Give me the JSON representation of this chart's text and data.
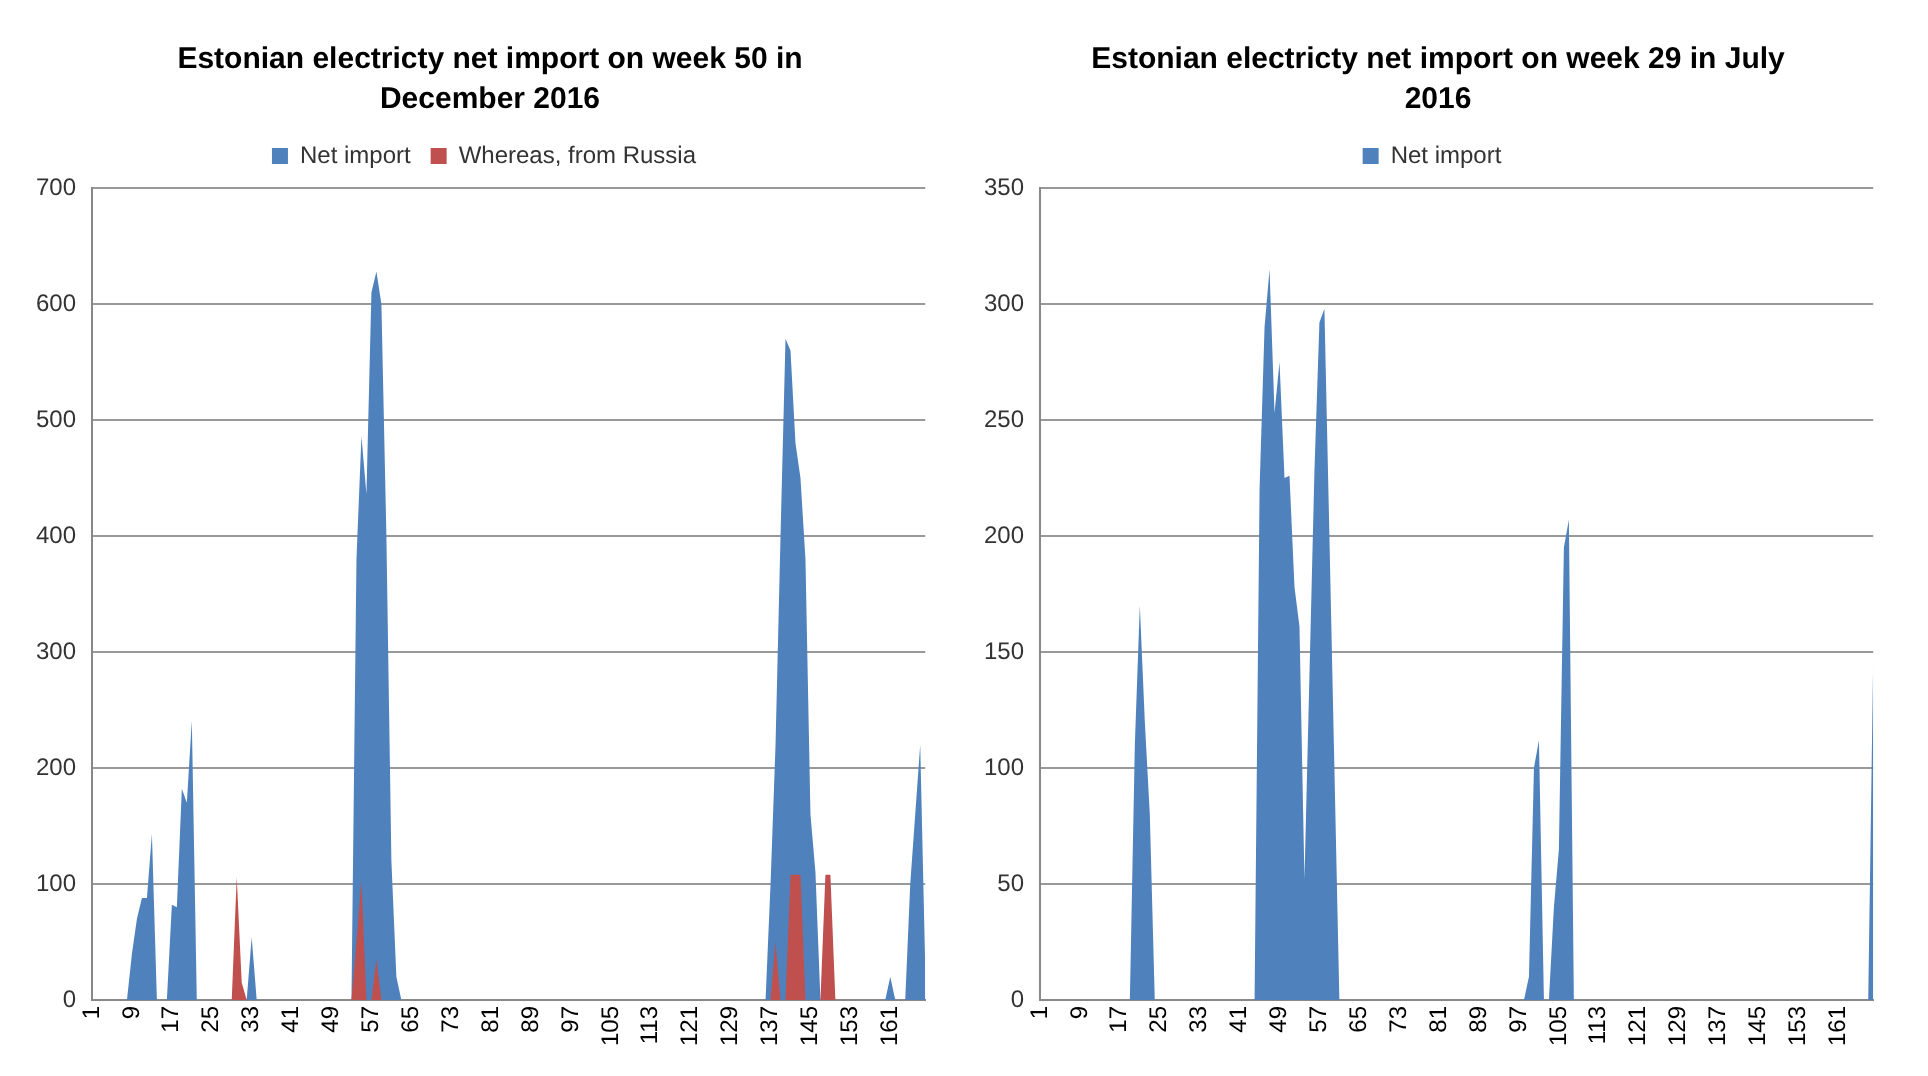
{
  "chart_data": [
    {
      "type": "area",
      "title": "Estonian electricty net import on week 50 in December 2016",
      "categories": [
        "1",
        null,
        null,
        null,
        null,
        null,
        null,
        null,
        "9",
        null,
        null,
        null,
        null,
        null,
        null,
        null,
        "17",
        null,
        null,
        null,
        null,
        null,
        null,
        null,
        "25",
        null,
        null,
        null,
        null,
        null,
        null,
        null,
        "33",
        null,
        null,
        null,
        null,
        null,
        null,
        null,
        "41",
        null,
        null,
        null,
        null,
        null,
        null,
        null,
        "49",
        null,
        null,
        null,
        null,
        null,
        null,
        null,
        "57",
        null,
        null,
        null,
        null,
        null,
        null,
        null,
        "65",
        null,
        null,
        null,
        null,
        null,
        null,
        null,
        "73",
        null,
        null,
        null,
        null,
        null,
        null,
        null,
        "81",
        null,
        null,
        null,
        null,
        null,
        null,
        null,
        "89",
        null,
        null,
        null,
        null,
        null,
        null,
        null,
        "97",
        null,
        null,
        null,
        null,
        null,
        null,
        null,
        "105",
        null,
        null,
        null,
        null,
        null,
        null,
        null,
        "113",
        null,
        null,
        null,
        null,
        null,
        null,
        null,
        "121",
        null,
        null,
        null,
        null,
        null,
        null,
        null,
        "129",
        null,
        null,
        null,
        null,
        null,
        null,
        null,
        "137",
        null,
        null,
        null,
        null,
        null,
        null,
        null,
        "145",
        null,
        null,
        null,
        null,
        null,
        null,
        null,
        "153",
        null,
        null,
        null,
        null,
        null,
        null,
        null,
        "161",
        null,
        null,
        null,
        null,
        null,
        null,
        null
      ],
      "series": [
        {
          "name": "Net import",
          "color": "#4f81bd",
          "values": [
            0,
            0,
            0,
            0,
            0,
            0,
            0,
            0,
            40,
            70,
            88,
            88,
            143,
            0,
            0,
            0,
            82,
            80,
            182,
            170,
            241,
            0,
            0,
            0,
            0,
            0,
            0,
            0,
            0,
            0,
            0,
            0,
            54,
            0,
            0,
            0,
            0,
            0,
            0,
            0,
            0,
            0,
            0,
            0,
            0,
            0,
            0,
            0,
            0,
            0,
            0,
            0,
            0,
            380,
            486,
            436,
            610,
            628,
            600,
            400,
            120,
            20,
            0,
            0,
            0,
            0,
            0,
            0,
            0,
            0,
            0,
            0,
            0,
            0,
            0,
            0,
            0,
            0,
            0,
            0,
            0,
            0,
            0,
            0,
            0,
            0,
            0,
            0,
            0,
            0,
            0,
            0,
            0,
            0,
            0,
            0,
            0,
            0,
            0,
            0,
            0,
            0,
            0,
            0,
            0,
            0,
            0,
            0,
            0,
            0,
            0,
            0,
            0,
            0,
            0,
            0,
            0,
            0,
            0,
            0,
            0,
            0,
            0,
            0,
            0,
            0,
            0,
            0,
            0,
            0,
            0,
            0,
            0,
            0,
            0,
            0,
            100,
            220,
            400,
            570,
            560,
            480,
            450,
            380,
            160,
            110,
            0,
            0,
            0,
            0,
            0,
            0,
            0,
            0,
            0,
            0,
            0,
            0,
            0,
            0,
            20,
            0,
            0,
            0,
            100,
            160,
            220,
            30
          ]
        },
        {
          "name": "Whereas, from Russia",
          "color": "#c0504d",
          "values": [
            0,
            0,
            0,
            0,
            0,
            0,
            0,
            0,
            0,
            0,
            0,
            0,
            0,
            0,
            0,
            0,
            0,
            0,
            0,
            0,
            0,
            0,
            0,
            0,
            0,
            0,
            0,
            0,
            0,
            106,
            15,
            0,
            0,
            0,
            0,
            0,
            0,
            0,
            0,
            0,
            0,
            0,
            0,
            0,
            0,
            0,
            0,
            0,
            0,
            0,
            0,
            0,
            0,
            50,
            103,
            0,
            0,
            35,
            0,
            0,
            0,
            0,
            0,
            0,
            0,
            0,
            0,
            0,
            0,
            0,
            0,
            0,
            0,
            0,
            0,
            0,
            0,
            0,
            0,
            0,
            0,
            0,
            0,
            0,
            0,
            0,
            0,
            0,
            0,
            0,
            0,
            0,
            0,
            0,
            0,
            0,
            0,
            0,
            0,
            0,
            0,
            0,
            0,
            0,
            0,
            0,
            0,
            0,
            0,
            0,
            0,
            0,
            0,
            0,
            0,
            0,
            0,
            0,
            0,
            0,
            0,
            0,
            0,
            0,
            0,
            0,
            0,
            0,
            0,
            0,
            0,
            0,
            0,
            0,
            0,
            0,
            0,
            50,
            0,
            0,
            108,
            108,
            108,
            0,
            0,
            0,
            0,
            108,
            108,
            0,
            0,
            0,
            0,
            0,
            0,
            0,
            0,
            0,
            0,
            0,
            0,
            0,
            0,
            0,
            0,
            0,
            0,
            0
          ]
        }
      ],
      "ylim": [
        0,
        700
      ],
      "yticks": [
        0,
        100,
        200,
        300,
        400,
        500,
        600,
        700
      ],
      "grid": "y",
      "legend": "top"
    },
    {
      "type": "area",
      "title": "Estonian electricty net import on week 29 in July 2016",
      "categories": [
        "1",
        null,
        null,
        null,
        null,
        null,
        null,
        null,
        "9",
        null,
        null,
        null,
        null,
        null,
        null,
        null,
        "17",
        null,
        null,
        null,
        null,
        null,
        null,
        null,
        "25",
        null,
        null,
        null,
        null,
        null,
        null,
        null,
        "33",
        null,
        null,
        null,
        null,
        null,
        null,
        null,
        "41",
        null,
        null,
        null,
        null,
        null,
        null,
        null,
        "49",
        null,
        null,
        null,
        null,
        null,
        null,
        null,
        "57",
        null,
        null,
        null,
        null,
        null,
        null,
        null,
        "65",
        null,
        null,
        null,
        null,
        null,
        null,
        null,
        "73",
        null,
        null,
        null,
        null,
        null,
        null,
        null,
        "81",
        null,
        null,
        null,
        null,
        null,
        null,
        null,
        "89",
        null,
        null,
        null,
        null,
        null,
        null,
        null,
        "97",
        null,
        null,
        null,
        null,
        null,
        null,
        null,
        "105",
        null,
        null,
        null,
        null,
        null,
        null,
        null,
        "113",
        null,
        null,
        null,
        null,
        null,
        null,
        null,
        "121",
        null,
        null,
        null,
        null,
        null,
        null,
        null,
        "129",
        null,
        null,
        null,
        null,
        null,
        null,
        null,
        "137",
        null,
        null,
        null,
        null,
        null,
        null,
        null,
        "145",
        null,
        null,
        null,
        null,
        null,
        null,
        null,
        "153",
        null,
        null,
        null,
        null,
        null,
        null,
        null,
        "161",
        null,
        null,
        null,
        null,
        null,
        null,
        null
      ],
      "series": [
        {
          "name": "Net import",
          "color": "#4f81bd",
          "values": [
            0,
            0,
            0,
            0,
            0,
            0,
            0,
            0,
            0,
            0,
            0,
            0,
            0,
            0,
            0,
            0,
            0,
            0,
            0,
            110,
            170,
            120,
            80,
            0,
            0,
            0,
            0,
            0,
            0,
            0,
            0,
            0,
            0,
            0,
            0,
            0,
            0,
            0,
            0,
            0,
            0,
            0,
            0,
            0,
            220,
            290,
            315,
            253,
            275,
            225,
            226,
            178,
            161,
            52,
            140,
            228,
            292,
            298,
            200,
            100,
            0,
            0,
            0,
            0,
            0,
            0,
            0,
            0,
            0,
            0,
            0,
            0,
            0,
            0,
            0,
            0,
            0,
            0,
            0,
            0,
            0,
            0,
            0,
            0,
            0,
            0,
            0,
            0,
            0,
            0,
            0,
            0,
            0,
            0,
            0,
            0,
            0,
            0,
            10,
            100,
            112,
            0,
            0,
            40,
            65,
            195,
            207,
            0,
            0,
            0,
            0,
            0,
            0,
            0,
            0,
            0,
            0,
            0,
            0,
            0,
            0,
            0,
            0,
            0,
            0,
            0,
            0,
            0,
            0,
            0,
            0,
            0,
            0,
            0,
            0,
            0,
            0,
            0,
            0,
            0,
            0,
            0,
            0,
            0,
            0,
            0,
            0,
            0,
            0,
            0,
            0,
            0,
            0,
            0,
            0,
            0,
            0,
            0,
            0,
            0,
            0,
            0,
            0,
            0,
            0,
            0,
            0,
            147
          ]
        }
      ],
      "ylim": [
        0,
        350
      ],
      "yticks": [
        0,
        50,
        100,
        150,
        200,
        250,
        300,
        350
      ],
      "grid": "y",
      "legend": "top"
    }
  ]
}
